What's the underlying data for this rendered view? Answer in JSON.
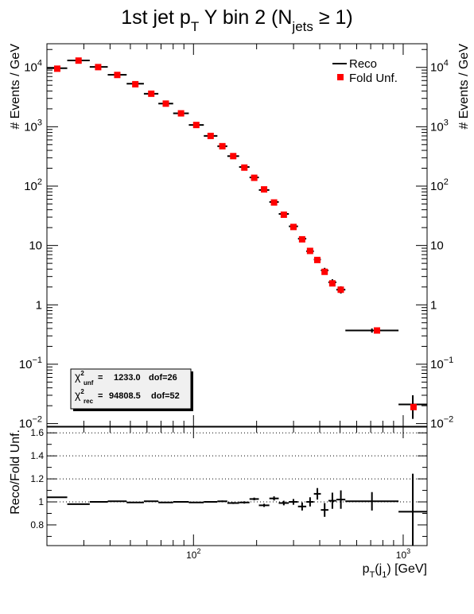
{
  "chart_data": {
    "type": "scatter",
    "title": {
      "main": "1st jet p",
      "sub1": "T",
      "mid": " Y bin 2 (N",
      "sub2": "jets",
      "tail": " ≥ 1)"
    },
    "top": {
      "ylabel": "# Events / GeV",
      "yscale": "log",
      "ylim": [
        0.009,
        25000
      ],
      "yticks": [
        {
          "v": 0.01,
          "base": "10",
          "exp": "−2"
        },
        {
          "v": 0.1,
          "base": "10",
          "exp": "−1"
        },
        {
          "v": 1,
          "base": "1",
          "exp": ""
        },
        {
          "v": 10,
          "base": "10",
          "exp": ""
        },
        {
          "v": 100,
          "base": "10",
          "exp": "2"
        },
        {
          "v": 1000,
          "base": "10",
          "exp": "3"
        },
        {
          "v": 10000,
          "base": "10",
          "exp": "4"
        }
      ],
      "legend": {
        "position": "top-right",
        "entries": [
          {
            "label": "Reco",
            "style": "line",
            "color": "#000000"
          },
          {
            "label": "Fold Unf.",
            "style": "marker",
            "color": "#ff0000"
          }
        ]
      },
      "stats": {
        "unf": {
          "sym": "χ",
          "sup": "2",
          "sub": "unf",
          "eq": "=",
          "value": "1233.0",
          "dof": "dof=26"
        },
        "rec": {
          "sym": "χ",
          "sup": "2",
          "sub": "rec",
          "eq": "=",
          "value": "94808.5",
          "dof": "dof=52"
        }
      }
    },
    "bottom": {
      "ylabel": "Reco/Fold Unf.",
      "ylim": [
        0.62,
        1.65
      ],
      "yticks": [
        {
          "v": 0.8,
          "label": "0.8"
        },
        {
          "v": 1.0,
          "label": "1"
        },
        {
          "v": 1.2,
          "label": "1.2"
        },
        {
          "v": 1.4,
          "label": "1.4"
        },
        {
          "v": 1.6,
          "label": "1.6"
        }
      ],
      "gridlines": [
        1.0,
        1.2,
        1.4,
        1.6
      ]
    },
    "x": {
      "scale": "log",
      "xlim": [
        20,
        1300
      ],
      "ticks": [
        {
          "v": 100,
          "base": "10",
          "exp": "2"
        },
        {
          "v": 1000,
          "base": "10",
          "exp": "3"
        }
      ],
      "label": {
        "main": "p",
        "s1": "T",
        "mid": "(j",
        "s2": "1",
        "tail": ") [GeV]"
      }
    },
    "series": [
      {
        "name": "Reco",
        "bins": [
          {
            "lo": 20,
            "hi": 25,
            "y": 9700,
            "ey": 0
          },
          {
            "lo": 25,
            "hi": 32,
            "y": 13100,
            "ey": 0
          },
          {
            "lo": 32,
            "hi": 39,
            "y": 10200,
            "ey": 0
          },
          {
            "lo": 39,
            "hi": 48,
            "y": 7500,
            "ey": 0
          },
          {
            "lo": 48,
            "hi": 58,
            "y": 5300,
            "ey": 0
          },
          {
            "lo": 58,
            "hi": 68,
            "y": 3600,
            "ey": 0
          },
          {
            "lo": 68,
            "hi": 80,
            "y": 2450,
            "ey": 0
          },
          {
            "lo": 80,
            "hi": 95,
            "y": 1680,
            "ey": 0
          },
          {
            "lo": 95,
            "hi": 112,
            "y": 1070,
            "ey": 0
          },
          {
            "lo": 112,
            "hi": 130,
            "y": 700,
            "ey": 0
          },
          {
            "lo": 130,
            "hi": 145,
            "y": 470,
            "ey": 0
          },
          {
            "lo": 145,
            "hi": 165,
            "y": 320,
            "ey": 0
          },
          {
            "lo": 165,
            "hi": 185,
            "y": 210,
            "ey": 0
          },
          {
            "lo": 185,
            "hi": 205,
            "y": 140,
            "ey": 0
          },
          {
            "lo": 205,
            "hi": 230,
            "y": 86,
            "ey": 0
          },
          {
            "lo": 230,
            "hi": 255,
            "y": 54,
            "ey": 0
          },
          {
            "lo": 255,
            "hi": 285,
            "y": 34,
            "ey": 0
          },
          {
            "lo": 285,
            "hi": 315,
            "y": 21,
            "ey": 0
          },
          {
            "lo": 315,
            "hi": 345,
            "y": 13,
            "ey": 0.8
          },
          {
            "lo": 345,
            "hi": 375,
            "y": 8,
            "ey": 0.6
          },
          {
            "lo": 375,
            "hi": 405,
            "y": 5.8,
            "ey": 0.5
          },
          {
            "lo": 405,
            "hi": 440,
            "y": 3.8,
            "ey": 0.4
          },
          {
            "lo": 440,
            "hi": 480,
            "y": 2.4,
            "ey": 0.3
          },
          {
            "lo": 480,
            "hi": 530,
            "y": 1.8,
            "ey": 0.25
          },
          {
            "lo": 530,
            "hi": 950,
            "y": 0.37,
            "ey": 0.03
          },
          {
            "lo": 950,
            "hi": 1300,
            "y": 0.021,
            "ey": 0.009
          }
        ]
      },
      {
        "name": "Fold Unf.",
        "points": [
          {
            "x": 22.4,
            "y": 9500
          },
          {
            "x": 28.3,
            "y": 13000
          },
          {
            "x": 35.1,
            "y": 10100
          },
          {
            "x": 43.3,
            "y": 7450
          },
          {
            "x": 52.8,
            "y": 5200
          },
          {
            "x": 62.9,
            "y": 3600
          },
          {
            "x": 73.8,
            "y": 2450
          },
          {
            "x": 87.2,
            "y": 1680
          },
          {
            "x": 103.1,
            "y": 1070
          },
          {
            "x": 120.7,
            "y": 700
          },
          {
            "x": 137.3,
            "y": 470
          },
          {
            "x": 154.7,
            "y": 320
          },
          {
            "x": 174.8,
            "y": 205
          },
          {
            "x": 194.8,
            "y": 138
          },
          {
            "x": 217.1,
            "y": 88
          },
          {
            "x": 242.2,
            "y": 53
          },
          {
            "x": 269.6,
            "y": 33
          },
          {
            "x": 299.7,
            "y": 20.5
          },
          {
            "x": 329.6,
            "y": 12.7
          },
          {
            "x": 359.6,
            "y": 8.1
          },
          {
            "x": 389.5,
            "y": 5.7
          },
          {
            "x": 422.1,
            "y": 3.6
          },
          {
            "x": 459.3,
            "y": 2.3
          },
          {
            "x": 503.8,
            "y": 1.8
          },
          {
            "x": 750,
            "y": 0.37
          },
          {
            "x": 1120,
            "y": 0.019
          }
        ]
      },
      {
        "name": "ratio",
        "bins": [
          {
            "lo": 20,
            "hi": 25,
            "y": 1.04,
            "ey": 0.003
          },
          {
            "lo": 25,
            "hi": 32,
            "y": 0.98,
            "ey": 0.003
          },
          {
            "lo": 32,
            "hi": 39,
            "y": 1.0,
            "ey": 0.003
          },
          {
            "lo": 39,
            "hi": 48,
            "y": 1.005,
            "ey": 0.003
          },
          {
            "lo": 48,
            "hi": 58,
            "y": 0.995,
            "ey": 0.003
          },
          {
            "lo": 58,
            "hi": 68,
            "y": 1.005,
            "ey": 0.003
          },
          {
            "lo": 68,
            "hi": 80,
            "y": 0.995,
            "ey": 0.004
          },
          {
            "lo": 80,
            "hi": 95,
            "y": 1.0,
            "ey": 0.005
          },
          {
            "lo": 95,
            "hi": 112,
            "y": 0.995,
            "ey": 0.005
          },
          {
            "lo": 112,
            "hi": 130,
            "y": 1.0,
            "ey": 0.006
          },
          {
            "lo": 130,
            "hi": 145,
            "y": 1.005,
            "ey": 0.007
          },
          {
            "lo": 145,
            "hi": 165,
            "y": 0.99,
            "ey": 0.008
          },
          {
            "lo": 165,
            "hi": 185,
            "y": 0.995,
            "ey": 0.01
          },
          {
            "lo": 185,
            "hi": 205,
            "y": 1.025,
            "ey": 0.012
          },
          {
            "lo": 205,
            "hi": 230,
            "y": 0.97,
            "ey": 0.014
          },
          {
            "lo": 230,
            "hi": 255,
            "y": 1.03,
            "ey": 0.018
          },
          {
            "lo": 255,
            "hi": 285,
            "y": 0.99,
            "ey": 0.02
          },
          {
            "lo": 285,
            "hi": 315,
            "y": 1.0,
            "ey": 0.025
          },
          {
            "lo": 315,
            "hi": 345,
            "y": 0.96,
            "ey": 0.035
          },
          {
            "lo": 345,
            "hi": 375,
            "y": 1.0,
            "ey": 0.04
          },
          {
            "lo": 375,
            "hi": 405,
            "y": 1.07,
            "ey": 0.05
          },
          {
            "lo": 405,
            "hi": 440,
            "y": 0.93,
            "ey": 0.06
          },
          {
            "lo": 440,
            "hi": 480,
            "y": 1.01,
            "ey": 0.07
          },
          {
            "lo": 480,
            "hi": 530,
            "y": 1.02,
            "ey": 0.08
          },
          {
            "lo": 530,
            "hi": 950,
            "y": 1.005,
            "ey": 0.08
          },
          {
            "lo": 950,
            "hi": 1300,
            "y": 0.915,
            "ey": 0.33
          }
        ]
      }
    ]
  }
}
